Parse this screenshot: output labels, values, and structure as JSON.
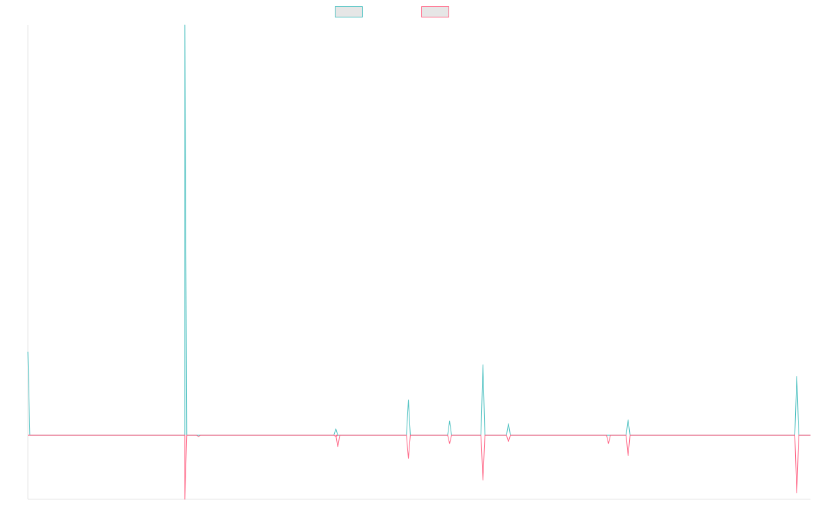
{
  "chart_data": {
    "type": "line",
    "title": "",
    "xlabel": "",
    "ylabel": "",
    "grid": false,
    "legend_placement": "top-center",
    "x": [
      0,
      1,
      2,
      3,
      4,
      5,
      6,
      7,
      8,
      9,
      10,
      11,
      12,
      13,
      14,
      15,
      16,
      17,
      18,
      19,
      20,
      21,
      22,
      23,
      24,
      25,
      26,
      27,
      28,
      29,
      30,
      31,
      32,
      33,
      34,
      35,
      36,
      37,
      38,
      39,
      40,
      41,
      42,
      43,
      44,
      45,
      46,
      47,
      48,
      49,
      50,
      51,
      52,
      53,
      54,
      55,
      56,
      57,
      58,
      59,
      60,
      61,
      62,
      63,
      64,
      65,
      66,
      67,
      68,
      69,
      70,
      71,
      72,
      73,
      74,
      75,
      76,
      77,
      78,
      79,
      80,
      81,
      82,
      83,
      84,
      85,
      86,
      87,
      88,
      89,
      90,
      91,
      92,
      93,
      94,
      95,
      96,
      97,
      98,
      99,
      100,
      101,
      102,
      103,
      104,
      105,
      106,
      107,
      108,
      109,
      110,
      111,
      112,
      113,
      114,
      115,
      116,
      117,
      118,
      119,
      120,
      121,
      122,
      123,
      124,
      125,
      126,
      127,
      128,
      129,
      130,
      131,
      132,
      133,
      134,
      135,
      136,
      137,
      138,
      139,
      140,
      141,
      142,
      143,
      144,
      145,
      146,
      147,
      148,
      149,
      150,
      151,
      152,
      153,
      154,
      155,
      156,
      157,
      158,
      159,
      160,
      161,
      162,
      163,
      164,
      165,
      166,
      167,
      168,
      169,
      170,
      171,
      172,
      173,
      174,
      175,
      176,
      177,
      178,
      179,
      180,
      181,
      182,
      183,
      184,
      185,
      186,
      187,
      188,
      189,
      190,
      191,
      192,
      193,
      194,
      195,
      196,
      197,
      198,
      199,
      200,
      201,
      202,
      203,
      204,
      205,
      206,
      207,
      208,
      209,
      210,
      211,
      212,
      213,
      214,
      215,
      216,
      217,
      218,
      219,
      220,
      221,
      222,
      223,
      224,
      225,
      226,
      227,
      228,
      229,
      230,
      231,
      232,
      233,
      234,
      235,
      236,
      237,
      238,
      239,
      240,
      241,
      242,
      243,
      244,
      245,
      246,
      247,
      248,
      249,
      250,
      251,
      252,
      253,
      254,
      255,
      256,
      257,
      258,
      259,
      260,
      261,
      262,
      263,
      264,
      265,
      266,
      267,
      268,
      269,
      270,
      271,
      272,
      273,
      274,
      275,
      276,
      277,
      278,
      279,
      280,
      281,
      282,
      283,
      284,
      285,
      286,
      287,
      288,
      289,
      290,
      291,
      292,
      293,
      294,
      295,
      296,
      297,
      298,
      299,
      300,
      301,
      302,
      303,
      304,
      305,
      306,
      307,
      308,
      309,
      310,
      311,
      312,
      313,
      314,
      315,
      316,
      317,
      318,
      319,
      320,
      321,
      322,
      323,
      324,
      325,
      326,
      327,
      328,
      329,
      330,
      331,
      332,
      333,
      334,
      335,
      336,
      337,
      338,
      339,
      340,
      341,
      342,
      343,
      344,
      345,
      346,
      347,
      348,
      349,
      350,
      351,
      352,
      353,
      354,
      355,
      356,
      357,
      358,
      359,
      360,
      361,
      362,
      363,
      364,
      365,
      366,
      367,
      368,
      369,
      370,
      371,
      372,
      373,
      374,
      375,
      376,
      377,
      378,
      379,
      380,
      381,
      382,
      383,
      384,
      385,
      386,
      387,
      388,
      389,
      390,
      391,
      392,
      393,
      394,
      395,
      396,
      397,
      398,
      399
    ],
    "xlim": [
      0,
      399
    ],
    "ylim": [
      -1.0,
      6.4
    ],
    "series_points": [
      {
        "name": "",
        "color": "#4bc0c0",
        "points": [
          [
            0,
            1.3
          ],
          [
            1,
            0.0
          ],
          [
            80,
            0.0
          ],
          [
            80,
            6.4
          ],
          [
            81,
            0.0
          ],
          [
            156,
            0.0
          ],
          [
            157,
            0.1
          ],
          [
            158,
            0.0
          ],
          [
            193,
            0.0
          ],
          [
            194,
            0.55
          ],
          [
            195,
            0.0
          ],
          [
            214,
            0.0
          ],
          [
            215,
            0.22
          ],
          [
            216,
            0.0
          ],
          [
            231,
            0.0
          ],
          [
            232,
            1.1
          ],
          [
            233,
            0.0
          ],
          [
            244,
            0.0
          ],
          [
            245,
            0.18
          ],
          [
            246,
            0.0
          ],
          [
            295,
            0.0
          ],
          [
            296,
            0.0
          ],
          [
            305,
            0.0
          ],
          [
            306,
            0.24
          ],
          [
            307,
            0.0
          ],
          [
            391,
            0.0
          ],
          [
            392,
            0.92
          ],
          [
            393,
            0.0
          ],
          [
            399,
            0.0
          ]
        ]
      },
      {
        "name": "",
        "color": "#ff6384",
        "points": [
          [
            0,
            0.0
          ],
          [
            80,
            0.0
          ],
          [
            80,
            -1.0
          ],
          [
            81,
            0.0
          ],
          [
            86,
            0.0
          ],
          [
            87,
            -0.02
          ],
          [
            88,
            0.0
          ],
          [
            156,
            0.0
          ],
          [
            157,
            -0.02
          ],
          [
            158,
            0.0
          ],
          [
            157,
            0.0
          ],
          [
            158,
            -0.18
          ],
          [
            159,
            0.0
          ],
          [
            193,
            0.0
          ],
          [
            194,
            -0.36
          ],
          [
            195,
            0.0
          ],
          [
            214,
            0.0
          ],
          [
            215,
            -0.13
          ],
          [
            216,
            0.0
          ],
          [
            231,
            0.0
          ],
          [
            232,
            -0.7
          ],
          [
            233,
            0.0
          ],
          [
            244,
            0.0
          ],
          [
            245,
            -0.1
          ],
          [
            246,
            0.0
          ],
          [
            295,
            0.0
          ],
          [
            296,
            -0.13
          ],
          [
            297,
            0.0
          ],
          [
            305,
            0.0
          ],
          [
            306,
            -0.32
          ],
          [
            307,
            0.0
          ],
          [
            391,
            0.0
          ],
          [
            392,
            -0.9
          ],
          [
            393,
            0.0
          ],
          [
            399,
            0.0
          ]
        ]
      }
    ]
  }
}
